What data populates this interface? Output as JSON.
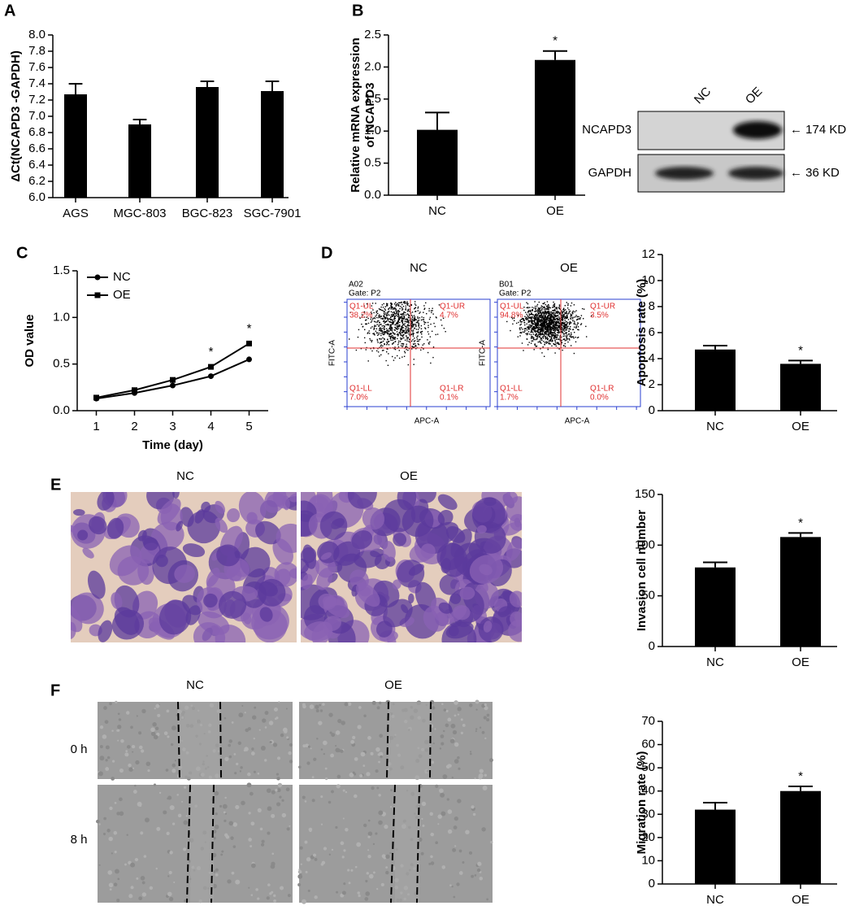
{
  "chart_data": [
    {
      "type": "bar",
      "panel": "A",
      "ylabel": "ΔCt(NCAPD3 -GAPDH)",
      "categories": [
        "AGS",
        "MGC-803",
        "BGC-823",
        "SGC-7901"
      ],
      "values": [
        7.27,
        6.9,
        7.36,
        7.31
      ],
      "errors": [
        0.13,
        0.06,
        0.07,
        0.12
      ],
      "color": "#000000",
      "ylim": [
        6.0,
        8.0
      ],
      "yticks": [
        {
          "value": 6,
          "label": "6.0"
        },
        6.2,
        6.4,
        6.6,
        6.8,
        {
          "value": 7,
          "label": "7.0"
        },
        7.2,
        7.4,
        7.6,
        7.8,
        {
          "value": 8,
          "label": "8.0"
        }
      ]
    },
    {
      "type": "bar",
      "panel": "B",
      "ylabel": [
        "Relative mRNA expression",
        "of NCAPD3"
      ],
      "categories": [
        "NC",
        "OE"
      ],
      "values": [
        1.02,
        2.11
      ],
      "errors": [
        0.27,
        0.14
      ],
      "color": "#000000",
      "ylim": [
        0,
        2.5
      ],
      "yticks": [
        {
          "value": 0,
          "label": "0.0"
        },
        0.5,
        {
          "value": 1,
          "label": "1.0"
        },
        1.5,
        {
          "value": 2,
          "label": "2.0"
        },
        2.5
      ],
      "annotations": [
        {
          "text": "*",
          "x": "OE"
        }
      ]
    },
    {
      "type": "line",
      "panel": "C",
      "ylabel": "OD value",
      "xlabel": "Time (day)",
      "x": [
        1,
        2,
        3,
        4,
        5
      ],
      "series": [
        {
          "name": "NC",
          "color": "#000000",
          "marker": "circle",
          "values": [
            0.13,
            0.19,
            0.27,
            0.37,
            0.55
          ]
        },
        {
          "name": "OE",
          "color": "#000000",
          "marker": "square",
          "values": [
            0.14,
            0.22,
            0.33,
            0.47,
            0.72
          ]
        }
      ],
      "xlim": [
        0.5,
        5.5
      ],
      "xticks": [
        1,
        2,
        3,
        4,
        5
      ],
      "ylim": [
        0,
        1.5
      ],
      "yticks": [
        {
          "value": 0,
          "label": "0.0"
        },
        0.5,
        {
          "value": 1,
          "label": "1.0"
        },
        1.5
      ],
      "legend": "top-left",
      "annotations": [
        {
          "text": "*",
          "x": 4
        },
        {
          "text": "*",
          "x": 5
        }
      ]
    },
    {
      "type": "bar",
      "panel": "D",
      "ylabel": "Apoptosis rate (%)",
      "categories": [
        "NC",
        "OE"
      ],
      "values": [
        4.7,
        3.6
      ],
      "errors": [
        0.3,
        0.25
      ],
      "color": "#000000",
      "ylim": [
        0,
        12
      ],
      "yticks": [
        0,
        2,
        4,
        6,
        8,
        10,
        12
      ],
      "annotations": [
        {
          "text": "*",
          "x": "OE"
        }
      ]
    },
    {
      "type": "bar",
      "panel": "E",
      "ylabel": "Invasion cell number",
      "categories": [
        "NC",
        "OE"
      ],
      "values": [
        78,
        108
      ],
      "errors": [
        5,
        4
      ],
      "color": "#000000",
      "ylim": [
        0,
        150
      ],
      "yticks": [
        0,
        50,
        100,
        150
      ],
      "annotations": [
        {
          "text": "*",
          "x": "OE"
        }
      ]
    },
    {
      "type": "bar",
      "panel": "F",
      "ylabel": "Migration rate (%)",
      "categories": [
        "NC",
        "OE"
      ],
      "values": [
        32,
        40
      ],
      "errors": [
        3,
        2
      ],
      "color": "#000000",
      "ylim": [
        0,
        70
      ],
      "yticks": [
        0,
        10,
        20,
        30,
        40,
        50,
        60,
        70
      ],
      "annotations": [
        {
          "text": "*",
          "x": "OE"
        }
      ]
    }
  ],
  "western_blot": {
    "lanes": [
      "NC",
      "OE"
    ],
    "rows": [
      "NCAPD3",
      "GAPDH"
    ],
    "sizes": [
      "← 174 KD",
      "← 36 KD"
    ]
  },
  "flow_cytometry": [
    {
      "title": "NC",
      "sample": "A02",
      "gate": "Gate: P2",
      "xlabel": "APC-A",
      "ylabel": "FITC-A",
      "quadrants": [
        "Q1-UL",
        "Q1-UR",
        "Q1-LL",
        "Q1-LR"
      ],
      "percents": [
        "38.2%",
        "4.7%",
        "7.0%",
        "0.1%"
      ]
    },
    {
      "title": "OE",
      "sample": "B01",
      "gate": "Gate: P2",
      "xlabel": "APC-A",
      "ylabel": "FITC-A",
      "quadrants": [
        "Q1-UL",
        "Q1-UR",
        "Q1-LL",
        "Q1-LR"
      ],
      "percents": [
        "94.8%",
        "3.5%",
        "1.7%",
        "0.0%"
      ]
    }
  ],
  "invasion_images": [
    "NC",
    "OE"
  ],
  "migration_images": {
    "columns": [
      "NC",
      "OE"
    ],
    "rows": [
      "0 h",
      "8 h"
    ]
  }
}
